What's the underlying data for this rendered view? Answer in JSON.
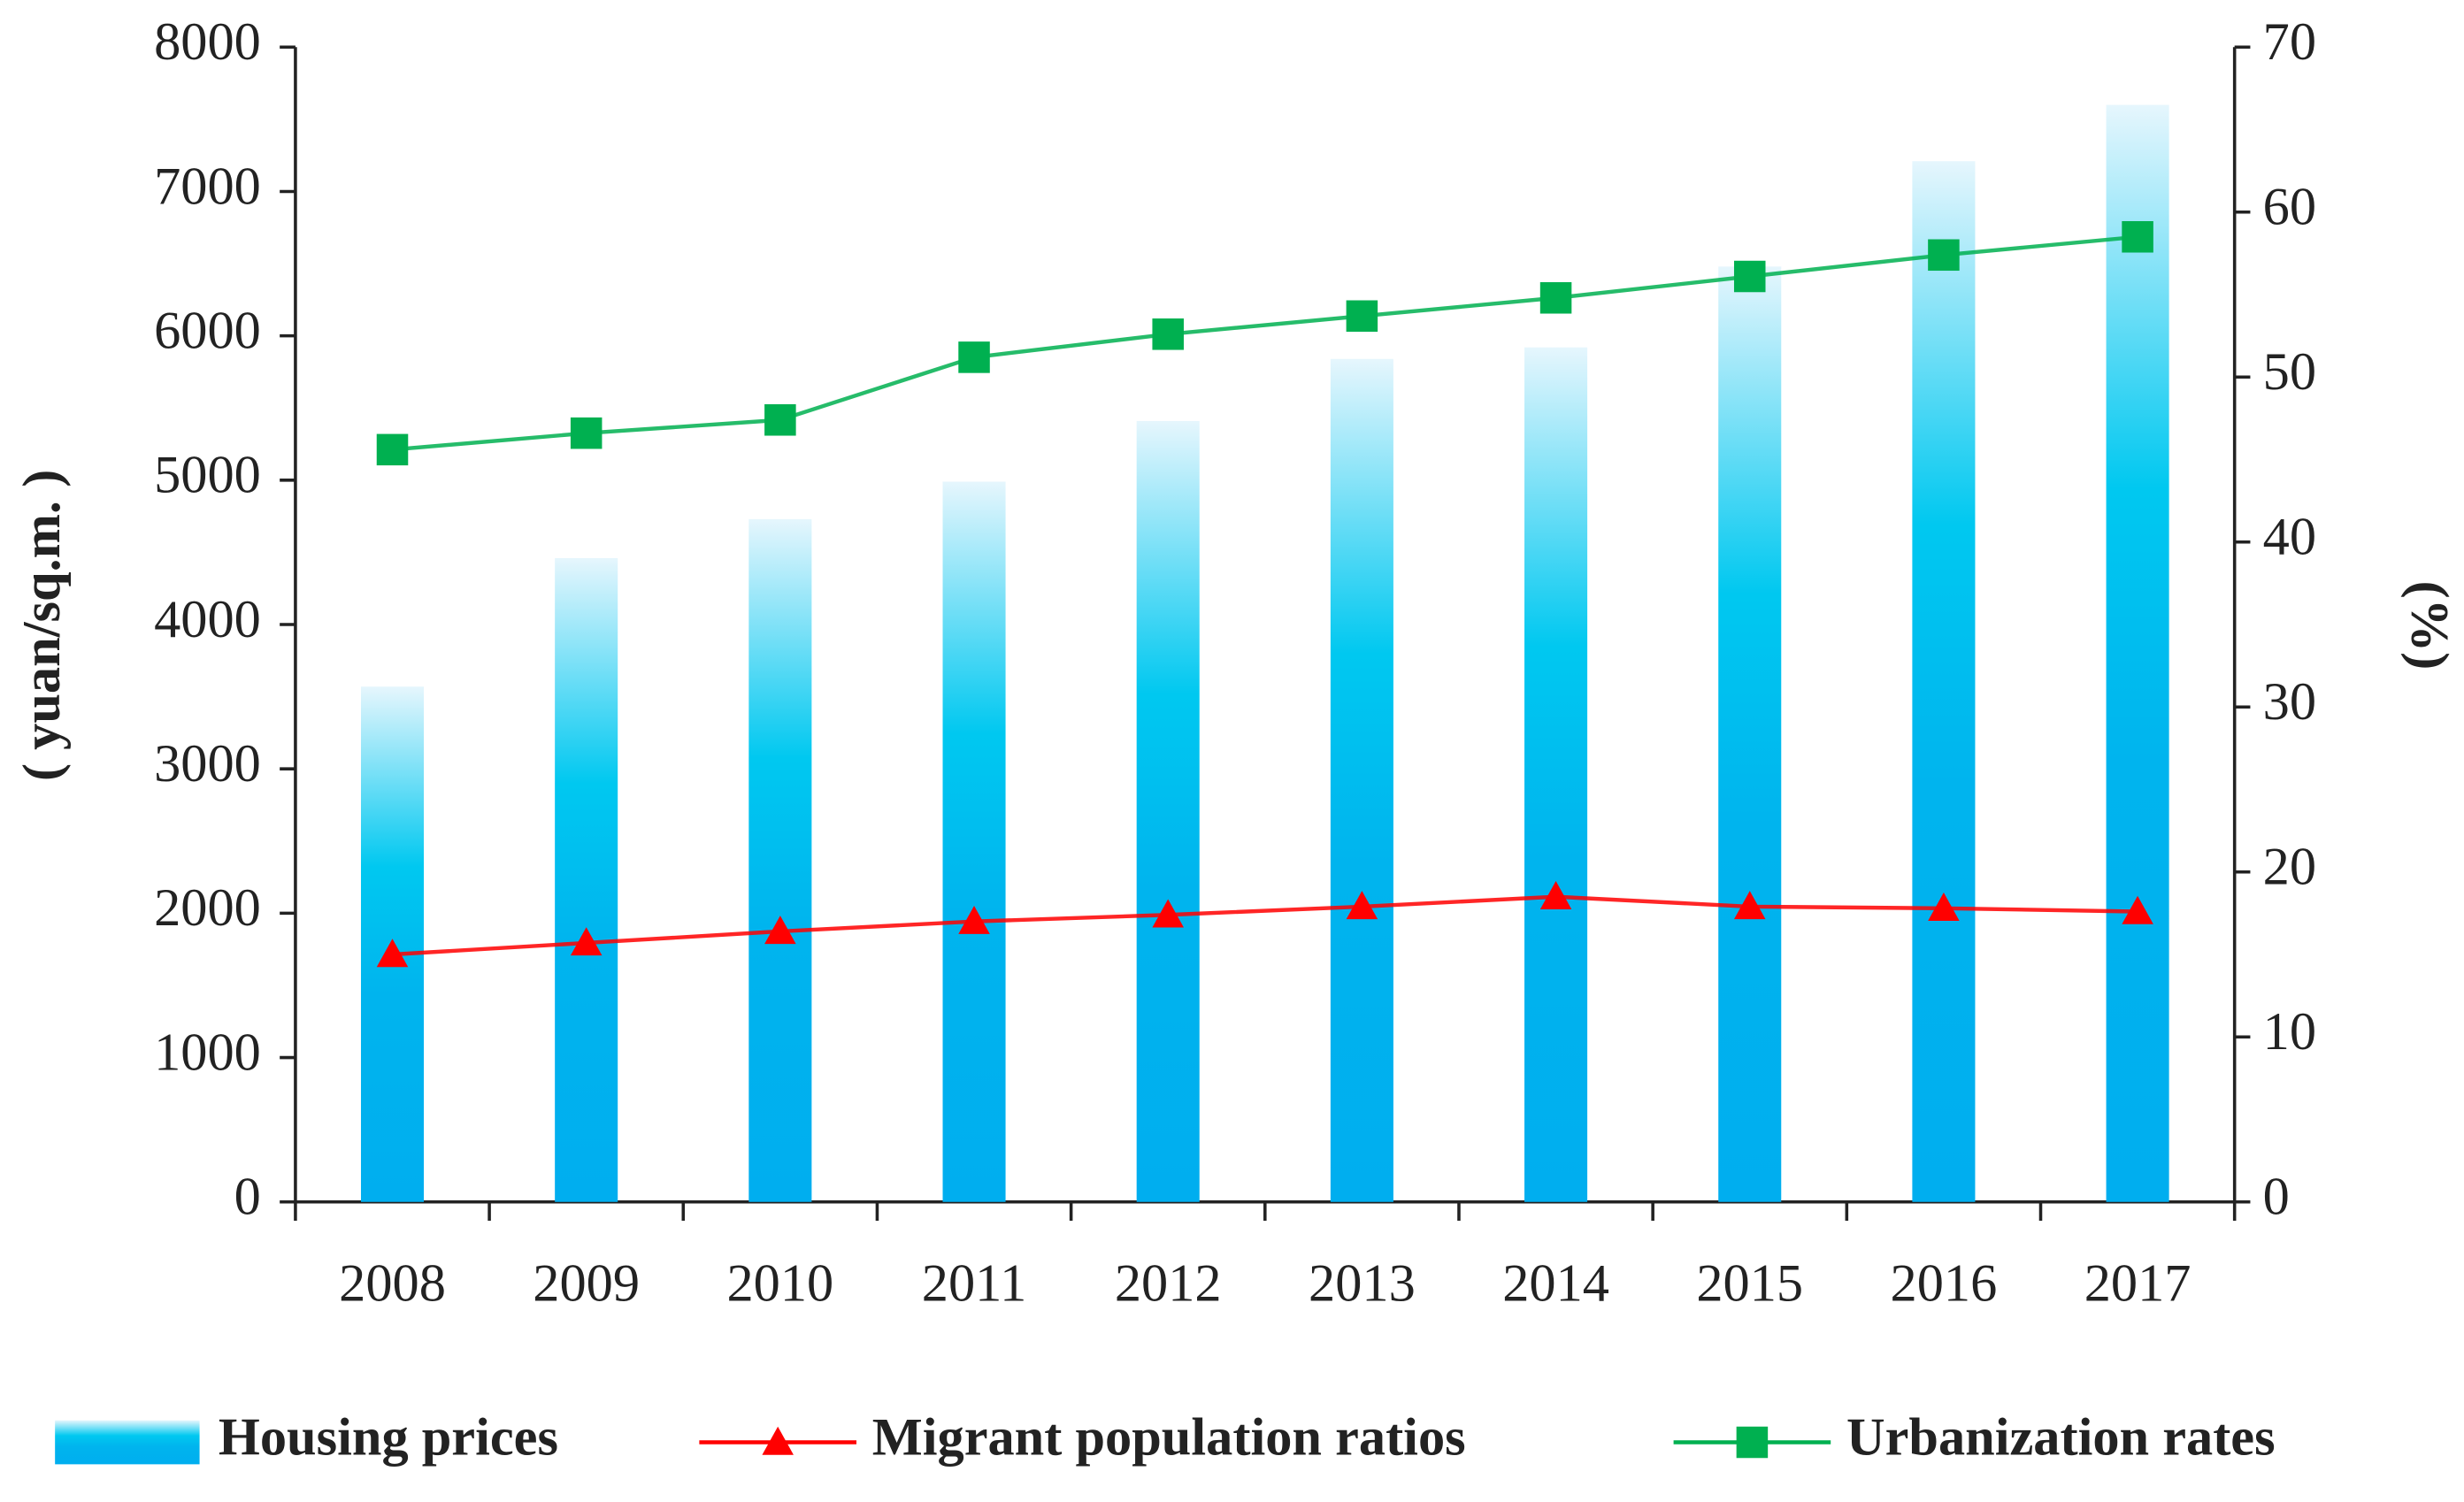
{
  "chart_data": {
    "type": "bar-line",
    "categories": [
      "2008",
      "2009",
      "2010",
      "2011",
      "2012",
      "2013",
      "2014",
      "2015",
      "2016",
      "2017"
    ],
    "y_label": "( yuan/sq.m. )",
    "y2_label": "(%)",
    "ylim": [
      0,
      8000
    ],
    "yticks": [
      0,
      1000,
      2000,
      3000,
      4000,
      5000,
      6000,
      7000,
      8000
    ],
    "y2lim": [
      0,
      70
    ],
    "y2ticks": [
      0,
      10,
      20,
      30,
      40,
      50,
      60,
      70
    ],
    "series": [
      {
        "name": "Housing prices",
        "type": "bar",
        "color": "#00b0f0",
        "values": [
          3570,
          4460,
          4730,
          4990,
          5410,
          5840,
          5920,
          6480,
          7210,
          7600
        ]
      },
      {
        "name": "Migrant population ratios",
        "type": "line",
        "axis": "y2",
        "color": "#ff0000",
        "marker": "triangle",
        "values": [
          15.0,
          15.7,
          16.4,
          17.0,
          17.4,
          17.9,
          18.5,
          17.9,
          17.8,
          17.6
        ]
      },
      {
        "name": "Urbanization rates",
        "type": "line",
        "axis": "y2",
        "color": "#00b050",
        "marker": "square",
        "values": [
          45.6,
          46.6,
          47.4,
          51.2,
          52.6,
          53.7,
          54.8,
          56.1,
          57.4,
          58.5
        ]
      }
    ]
  }
}
